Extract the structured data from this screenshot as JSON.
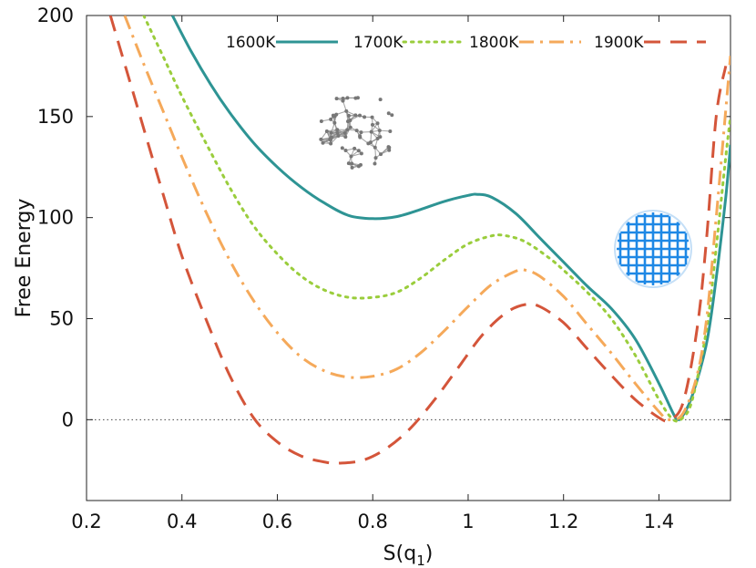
{
  "chart_data": {
    "type": "line",
    "xlabel": "S(q1)",
    "xlabel_main": "S(q",
    "xlabel_sub": "1",
    "xlabel_close": ")",
    "ylabel": "Free Energy",
    "xlim": [
      0.2,
      1.55
    ],
    "ylim": [
      -40,
      200
    ],
    "xticks": [
      0.2,
      0.4,
      0.6,
      0.8,
      1,
      1.2,
      1.4
    ],
    "xtick_labels": [
      "0.2",
      "0.4",
      "0.6",
      "0.8",
      "1",
      "1.2",
      "1.4"
    ],
    "yticks": [
      0,
      50,
      100,
      150,
      200
    ],
    "ytick_labels": [
      "0",
      "50",
      "100",
      "150",
      "200"
    ],
    "reference_line": {
      "y": 0,
      "style": "dotted"
    },
    "legend_position": "top-right",
    "series": [
      {
        "name": "1600K",
        "color": "#2e9494",
        "style": "solid",
        "points": [
          [
            0.38,
            200
          ],
          [
            0.42,
            182
          ],
          [
            0.46,
            166
          ],
          [
            0.5,
            152
          ],
          [
            0.55,
            137
          ],
          [
            0.6,
            125
          ],
          [
            0.65,
            115
          ],
          [
            0.7,
            107
          ],
          [
            0.75,
            101
          ],
          [
            0.8,
            99.5
          ],
          [
            0.85,
            100.5
          ],
          [
            0.9,
            104
          ],
          [
            0.95,
            108
          ],
          [
            1.0,
            111
          ],
          [
            1.02,
            111.5
          ],
          [
            1.05,
            110
          ],
          [
            1.1,
            102
          ],
          [
            1.15,
            90
          ],
          [
            1.2,
            78
          ],
          [
            1.25,
            66
          ],
          [
            1.3,
            55
          ],
          [
            1.35,
            40
          ],
          [
            1.4,
            18
          ],
          [
            1.43,
            3
          ],
          [
            1.44,
            0
          ],
          [
            1.45,
            2
          ],
          [
            1.47,
            12
          ],
          [
            1.5,
            38
          ],
          [
            1.52,
            70
          ],
          [
            1.54,
            110
          ],
          [
            1.55,
            136
          ]
        ]
      },
      {
        "name": "1700K",
        "color": "#9acd3c",
        "style": "dotted",
        "points": [
          [
            0.32,
            200
          ],
          [
            0.36,
            180
          ],
          [
            0.4,
            160
          ],
          [
            0.45,
            137
          ],
          [
            0.5,
            115
          ],
          [
            0.55,
            96
          ],
          [
            0.6,
            82
          ],
          [
            0.65,
            71
          ],
          [
            0.7,
            64
          ],
          [
            0.75,
            60.5
          ],
          [
            0.8,
            60.5
          ],
          [
            0.85,
            63
          ],
          [
            0.9,
            70
          ],
          [
            0.95,
            79
          ],
          [
            1.0,
            87
          ],
          [
            1.05,
            91
          ],
          [
            1.08,
            91
          ],
          [
            1.12,
            88
          ],
          [
            1.17,
            80
          ],
          [
            1.2,
            74
          ],
          [
            1.25,
            63
          ],
          [
            1.3,
            50
          ],
          [
            1.35,
            32
          ],
          [
            1.4,
            10
          ],
          [
            1.43,
            0
          ],
          [
            1.45,
            1
          ],
          [
            1.47,
            10
          ],
          [
            1.5,
            45
          ],
          [
            1.52,
            85
          ],
          [
            1.54,
            130
          ],
          [
            1.55,
            150
          ]
        ]
      },
      {
        "name": "1800K",
        "color": "#f5a95a",
        "style": "dashdot",
        "points": [
          [
            0.28,
            200
          ],
          [
            0.32,
            176
          ],
          [
            0.36,
            153
          ],
          [
            0.4,
            130
          ],
          [
            0.45,
            103
          ],
          [
            0.5,
            79
          ],
          [
            0.55,
            59
          ],
          [
            0.6,
            43
          ],
          [
            0.65,
            31
          ],
          [
            0.7,
            24
          ],
          [
            0.75,
            21
          ],
          [
            0.8,
            21.5
          ],
          [
            0.85,
            25
          ],
          [
            0.9,
            33
          ],
          [
            0.95,
            44
          ],
          [
            1.0,
            56
          ],
          [
            1.05,
            67
          ],
          [
            1.1,
            73.5
          ],
          [
            1.12,
            74
          ],
          [
            1.15,
            71
          ],
          [
            1.2,
            61
          ],
          [
            1.25,
            47
          ],
          [
            1.3,
            33
          ],
          [
            1.35,
            18
          ],
          [
            1.4,
            4
          ],
          [
            1.42,
            0
          ],
          [
            1.45,
            3
          ],
          [
            1.48,
            22
          ],
          [
            1.5,
            50
          ],
          [
            1.52,
            100
          ],
          [
            1.55,
            180
          ]
        ]
      },
      {
        "name": "1900K",
        "color": "#d4553a",
        "style": "dashed",
        "points": [
          [
            0.25,
            200
          ],
          [
            0.28,
            176
          ],
          [
            0.32,
            144
          ],
          [
            0.36,
            112
          ],
          [
            0.4,
            81
          ],
          [
            0.45,
            50
          ],
          [
            0.5,
            22
          ],
          [
            0.55,
            1
          ],
          [
            0.6,
            -11
          ],
          [
            0.65,
            -18
          ],
          [
            0.7,
            -21
          ],
          [
            0.73,
            -21.5
          ],
          [
            0.78,
            -20
          ],
          [
            0.83,
            -14
          ],
          [
            0.88,
            -4
          ],
          [
            0.93,
            10
          ],
          [
            0.98,
            26
          ],
          [
            1.03,
            42
          ],
          [
            1.08,
            53
          ],
          [
            1.12,
            57
          ],
          [
            1.15,
            56
          ],
          [
            1.2,
            48
          ],
          [
            1.25,
            35
          ],
          [
            1.3,
            22
          ],
          [
            1.35,
            10
          ],
          [
            1.4,
            1
          ],
          [
            1.42,
            0
          ],
          [
            1.45,
            8
          ],
          [
            1.48,
            45
          ],
          [
            1.5,
            90
          ],
          [
            1.52,
            150
          ],
          [
            1.54,
            175
          ]
        ]
      }
    ]
  },
  "insets": {
    "amorphous_icon": "amorphous-cluster-icon",
    "crystal_icon": "crystal-lattice-icon",
    "amorphous_color": "#8a8a8a",
    "crystal_color": "#1e88e5"
  }
}
